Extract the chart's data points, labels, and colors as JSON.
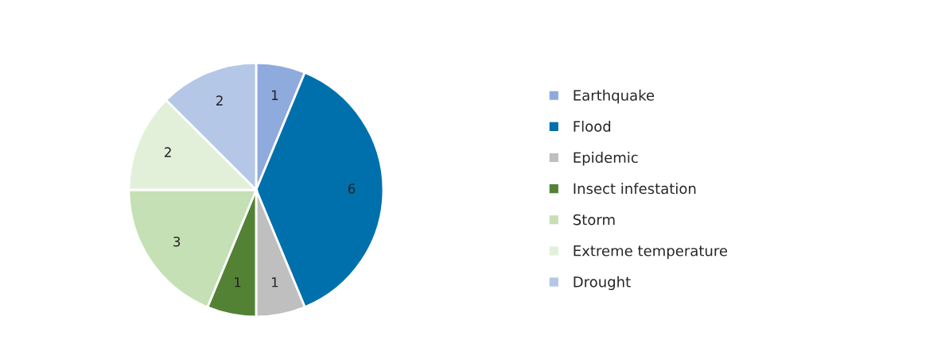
{
  "chart_data": {
    "type": "pie",
    "categories": [
      "Earthquake",
      "Flood",
      "Epidemic",
      "Insect infestation",
      "Storm",
      "Extreme temperature",
      "Drought"
    ],
    "values": [
      1,
      6,
      1,
      1,
      3,
      2,
      2
    ],
    "colors": [
      "#8faadc",
      "#0070ac",
      "#bfbfbf",
      "#548235",
      "#c5e0b4",
      "#e2f0d9",
      "#b4c7e7"
    ],
    "data_labels": true,
    "legend": "right"
  }
}
